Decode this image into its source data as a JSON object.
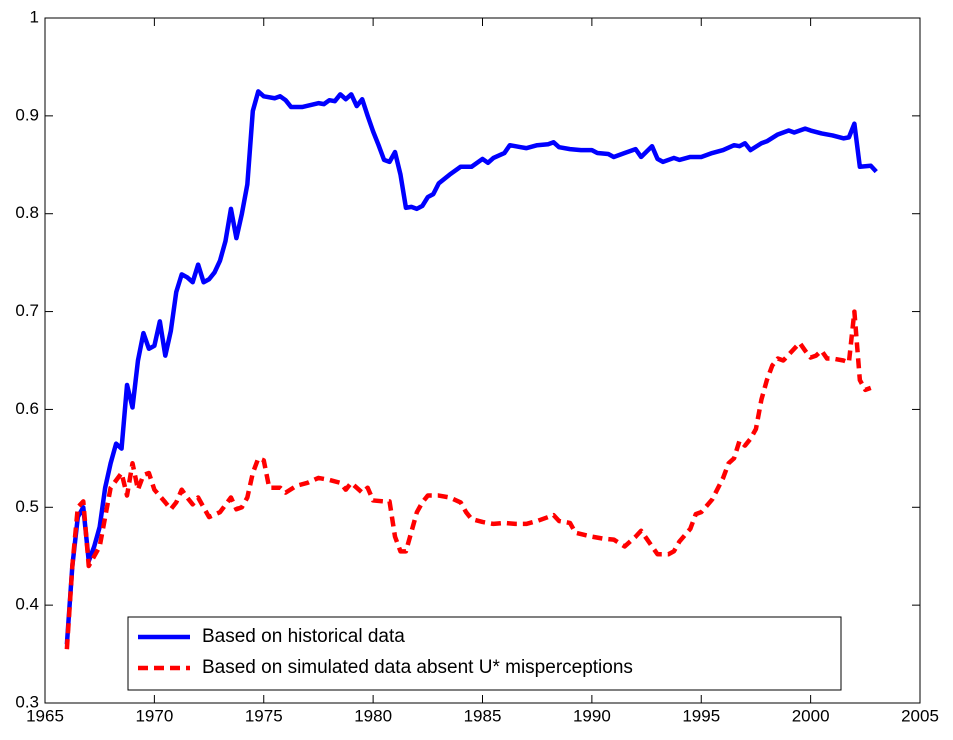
{
  "chart_data": {
    "type": "line",
    "xlim": [
      1965,
      2005
    ],
    "xticks": [
      1965,
      1970,
      1975,
      1980,
      1985,
      1990,
      1995,
      2000,
      2005
    ],
    "ylim": [
      0.3,
      1
    ],
    "yticks": [
      0.3,
      0.4,
      0.5,
      0.6,
      0.7,
      0.8,
      0.9,
      1
    ],
    "grid": false,
    "legend": "lower center",
    "series": [
      {
        "name": "Based on historical data",
        "color": "#0000ff",
        "style": "solid",
        "x": [
          1966.0,
          1966.25,
          1966.5,
          1966.75,
          1967.0,
          1967.25,
          1967.5,
          1967.75,
          1968.0,
          1968.25,
          1968.5,
          1968.75,
          1969.0,
          1969.25,
          1969.5,
          1969.75,
          1970.0,
          1970.25,
          1970.5,
          1970.75,
          1971.0,
          1971.25,
          1971.5,
          1971.75,
          1972.0,
          1972.25,
          1972.5,
          1972.75,
          1973.0,
          1973.25,
          1973.5,
          1973.75,
          1974.0,
          1974.25,
          1974.5,
          1974.75,
          1975.0,
          1975.5,
          1975.75,
          1976.0,
          1976.25,
          1976.75,
          1977.5,
          1977.75,
          1978.0,
          1978.25,
          1978.5,
          1978.75,
          1979.0,
          1979.25,
          1979.5,
          1979.75,
          1980.0,
          1980.25,
          1980.5,
          1980.75,
          1981.0,
          1981.25,
          1981.5,
          1981.75,
          1982.0,
          1982.25,
          1982.5,
          1982.75,
          1983.0,
          1983.5,
          1984.0,
          1984.5,
          1985.0,
          1985.25,
          1985.5,
          1986.0,
          1986.25,
          1986.75,
          1987.0,
          1987.5,
          1988.0,
          1988.25,
          1988.5,
          1989.0,
          1989.5,
          1990.0,
          1990.25,
          1990.75,
          1991.0,
          1991.5,
          1992.0,
          1992.25,
          1992.75,
          1993.0,
          1993.25,
          1993.75,
          1994.0,
          1994.5,
          1995.0,
          1995.5,
          1996.0,
          1996.5,
          1996.75,
          1997.0,
          1997.25,
          1997.75,
          1998.0,
          1998.5,
          1999.0,
          1999.25,
          1999.75,
          2000.0,
          2000.5,
          2001.0,
          2001.5,
          2001.75,
          2002.0,
          2002.25,
          2002.75,
          2003.0
        ],
        "values": [
          0.36,
          0.44,
          0.49,
          0.5,
          0.445,
          0.46,
          0.48,
          0.52,
          0.545,
          0.565,
          0.56,
          0.625,
          0.602,
          0.65,
          0.678,
          0.662,
          0.665,
          0.69,
          0.655,
          0.68,
          0.72,
          0.738,
          0.735,
          0.73,
          0.748,
          0.73,
          0.733,
          0.74,
          0.752,
          0.772,
          0.805,
          0.775,
          0.8,
          0.83,
          0.905,
          0.925,
          0.92,
          0.918,
          0.92,
          0.916,
          0.909,
          0.909,
          0.913,
          0.912,
          0.916,
          0.915,
          0.922,
          0.917,
          0.922,
          0.91,
          0.917,
          0.9,
          0.884,
          0.87,
          0.855,
          0.853,
          0.863,
          0.84,
          0.806,
          0.807,
          0.805,
          0.808,
          0.817,
          0.82,
          0.831,
          0.84,
          0.848,
          0.848,
          0.856,
          0.852,
          0.857,
          0.862,
          0.87,
          0.868,
          0.867,
          0.87,
          0.871,
          0.873,
          0.868,
          0.866,
          0.865,
          0.865,
          0.862,
          0.861,
          0.858,
          0.862,
          0.866,
          0.858,
          0.869,
          0.856,
          0.853,
          0.857,
          0.855,
          0.858,
          0.858,
          0.862,
          0.865,
          0.87,
          0.869,
          0.872,
          0.865,
          0.872,
          0.874,
          0.881,
          0.885,
          0.883,
          0.887,
          0.885,
          0.882,
          0.88,
          0.877,
          0.878,
          0.892,
          0.848,
          0.849,
          0.843
        ]
      },
      {
        "name": "Based on simulated data absent U* misperceptions",
        "color": "#ff0000",
        "style": "dashed",
        "x": [
          1966.0,
          1966.25,
          1966.5,
          1966.75,
          1967.0,
          1967.5,
          1967.75,
          1968.0,
          1968.5,
          1968.75,
          1969.0,
          1969.25,
          1969.5,
          1969.75,
          1970.0,
          1970.5,
          1970.75,
          1971.0,
          1971.25,
          1971.5,
          1971.75,
          1972.0,
          1972.25,
          1972.5,
          1973.0,
          1973.5,
          1973.75,
          1974.0,
          1974.25,
          1974.5,
          1974.75,
          1975.0,
          1975.25,
          1975.75,
          1976.0,
          1976.5,
          1977.0,
          1977.5,
          1978.0,
          1978.5,
          1978.75,
          1979.0,
          1979.5,
          1979.75,
          1980.0,
          1980.5,
          1980.75,
          1981.0,
          1981.25,
          1981.5,
          1981.75,
          1982.0,
          1982.25,
          1982.5,
          1983.0,
          1983.5,
          1984.0,
          1984.25,
          1984.5,
          1985.0,
          1985.5,
          1986.0,
          1986.5,
          1987.0,
          1987.5,
          1988.0,
          1988.25,
          1988.5,
          1989.0,
          1989.25,
          1990.0,
          1990.5,
          1991.0,
          1991.5,
          1992.0,
          1992.25,
          1992.5,
          1993.0,
          1993.5,
          1993.75,
          1994.0,
          1994.5,
          1994.75,
          1995.0,
          1995.5,
          1996.0,
          1996.25,
          1996.5,
          1996.75,
          1997.0,
          1997.25,
          1997.5,
          1997.75,
          1998.0,
          1998.25,
          1998.5,
          1998.75,
          1999.0,
          1999.5,
          1999.75,
          2000.0,
          2000.25,
          2000.5,
          2000.75,
          2001.0,
          2001.5,
          2001.75,
          2002.0,
          2002.25,
          2002.5,
          2002.75
        ],
        "values": [
          0.355,
          0.44,
          0.5,
          0.506,
          0.44,
          0.46,
          0.49,
          0.52,
          0.535,
          0.512,
          0.545,
          0.518,
          0.533,
          0.535,
          0.518,
          0.505,
          0.498,
          0.505,
          0.518,
          0.51,
          0.503,
          0.51,
          0.5,
          0.49,
          0.495,
          0.51,
          0.498,
          0.5,
          0.51,
          0.535,
          0.55,
          0.548,
          0.52,
          0.52,
          0.515,
          0.522,
          0.525,
          0.53,
          0.528,
          0.525,
          0.518,
          0.525,
          0.515,
          0.52,
          0.507,
          0.506,
          0.506,
          0.47,
          0.455,
          0.455,
          0.475,
          0.495,
          0.505,
          0.512,
          0.512,
          0.51,
          0.505,
          0.495,
          0.488,
          0.485,
          0.483,
          0.484,
          0.483,
          0.483,
          0.486,
          0.49,
          0.492,
          0.486,
          0.484,
          0.474,
          0.47,
          0.468,
          0.467,
          0.46,
          0.47,
          0.476,
          0.468,
          0.452,
          0.452,
          0.455,
          0.465,
          0.478,
          0.493,
          0.495,
          0.508,
          0.53,
          0.545,
          0.55,
          0.568,
          0.563,
          0.57,
          0.58,
          0.61,
          0.63,
          0.645,
          0.652,
          0.65,
          0.656,
          0.668,
          0.66,
          0.653,
          0.655,
          0.66,
          0.652,
          0.652,
          0.65,
          0.648,
          0.7,
          0.63,
          0.62,
          0.622
        ]
      }
    ]
  }
}
